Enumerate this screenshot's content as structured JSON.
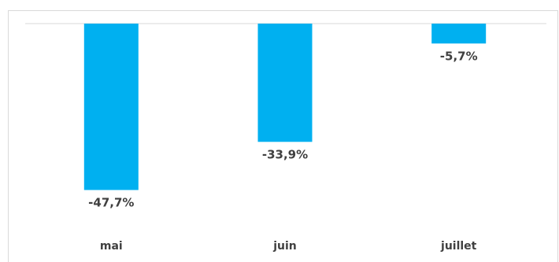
{
  "chart_data": {
    "type": "bar",
    "categories": [
      "mai",
      "juin",
      "juillet"
    ],
    "values": [
      -47.7,
      -33.9,
      -5.7
    ],
    "data_labels": [
      "-47,7%",
      "-33,9%",
      "-5,7%"
    ],
    "ylim": [
      -50,
      0
    ],
    "grid": false,
    "legend": "none",
    "colors": {
      "bar": "#00b0f0",
      "text": "#404040",
      "axis": "#d9d9d9"
    }
  }
}
